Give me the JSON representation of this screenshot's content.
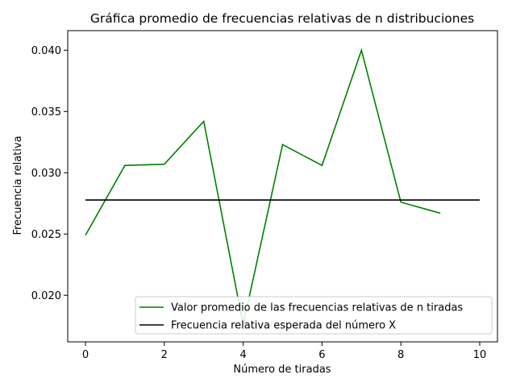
{
  "chart_data": {
    "type": "line",
    "title": "Gráfica promedio de frecuencias relativas de n distribuciones",
    "xlabel": "Número de tiradas",
    "ylabel": "Frecuencia relativa",
    "xlim": [
      -0.45,
      10.45
    ],
    "ylim": [
      0.0162,
      0.0416
    ],
    "xticks": [
      0,
      2,
      4,
      6,
      8,
      10
    ],
    "xtick_labels": [
      "0",
      "2",
      "4",
      "6",
      "8",
      "10"
    ],
    "yticks": [
      0.02,
      0.025,
      0.03,
      0.035,
      0.04
    ],
    "ytick_labels": [
      "0.020",
      "0.025",
      "0.030",
      "0.035",
      "0.040"
    ],
    "grid": false,
    "legend_position": "lower-right",
    "series": [
      {
        "name": "Valor promedio de las frecuencias relativas de n tiradas",
        "color": "#008000",
        "x": [
          0,
          1,
          2,
          3,
          4,
          5,
          6,
          7,
          8,
          9
        ],
        "y": [
          0.0249,
          0.0306,
          0.0307,
          0.0342,
          0.0176,
          0.0323,
          0.0306,
          0.04,
          0.0276,
          0.0267
        ]
      },
      {
        "name": "Frecuencia relativa esperada del número X",
        "color": "#000000",
        "x": [
          0,
          10
        ],
        "y": [
          0.02778,
          0.02778
        ]
      }
    ]
  }
}
